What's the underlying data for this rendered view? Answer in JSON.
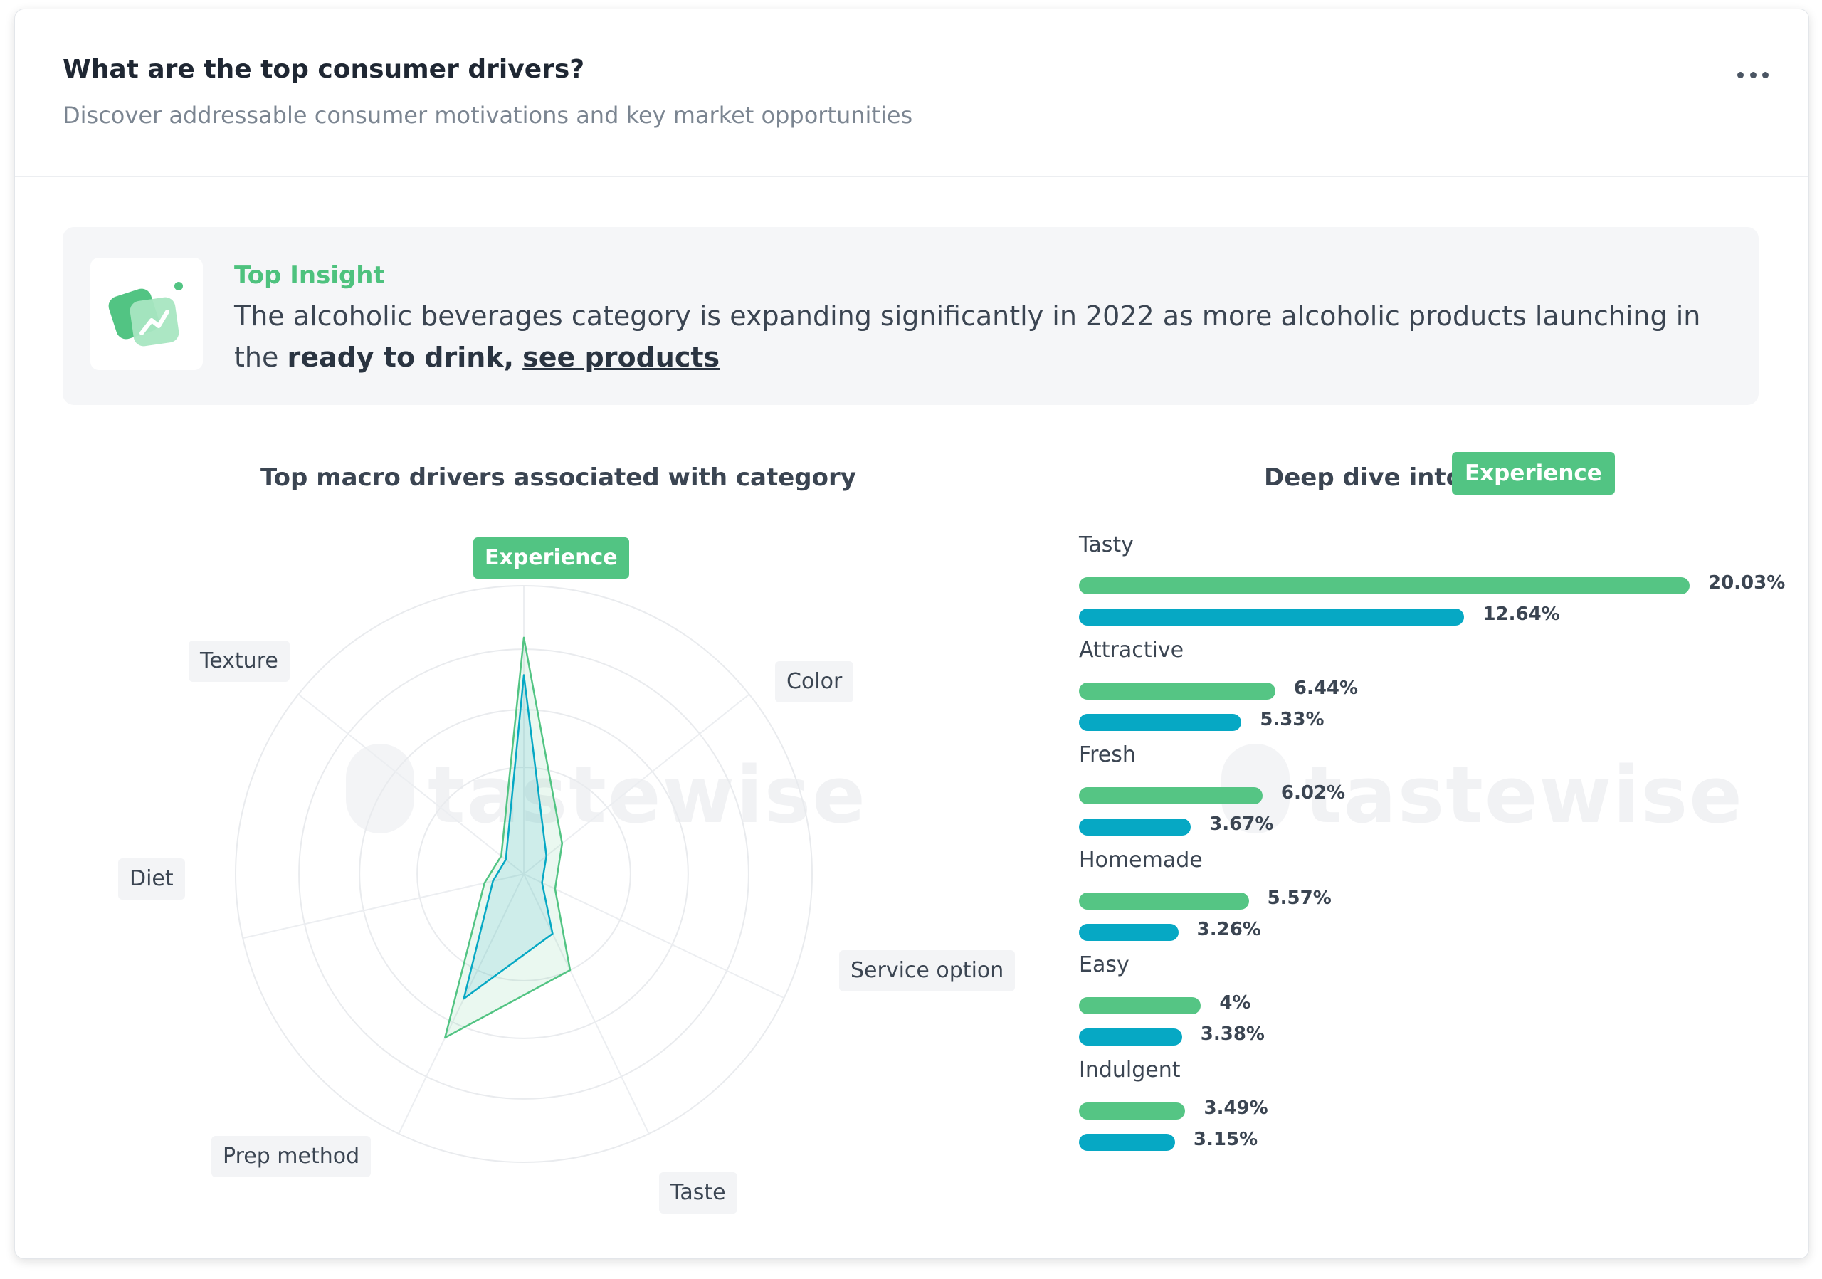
{
  "header": {
    "title": "What are the top consumer drivers?",
    "subtitle": "Discover addressable consumer motivations and key market opportunities"
  },
  "insight": {
    "label": "Top Insight",
    "text_before": "The alcoholic beverages category is expanding significantly in 2022 as more alcoholic products launching in the ",
    "text_bold": "ready to drink,",
    "link": "see products",
    "icon": "trend-chart-icon"
  },
  "radar": {
    "title": "Top macro drivers associated with category",
    "watermark": "tastewise"
  },
  "deep_dive": {
    "title": "Deep dive into",
    "badge": "Experience",
    "watermark": "tastewise"
  },
  "colors": {
    "green": "#52c483",
    "blue": "#06a8c4"
  },
  "chart_data": [
    {
      "type": "radar",
      "axes": [
        "Experience",
        "Color",
        "Service option",
        "Taste",
        "Prep method",
        "Diet",
        "Texture"
      ],
      "active_axis": "Experience",
      "rmax": 100,
      "series": [
        {
          "values": [
            82,
            17,
            12,
            37,
            63,
            14,
            10
          ]
        },
        {
          "values": [
            69,
            10,
            7,
            23,
            48,
            11,
            8
          ]
        }
      ]
    },
    {
      "type": "bar",
      "orientation": "horizontal",
      "categories": [
        "Tasty",
        "Attractive",
        "Fresh",
        "Homemade",
        "Easy",
        "Indulgent"
      ],
      "series": [
        {
          "values": [
            20.03,
            6.44,
            6.02,
            5.57,
            4,
            3.49
          ],
          "labels": [
            "20.03%",
            "6.44%",
            "6.02%",
            "5.57%",
            "4%",
            "3.49%"
          ]
        },
        {
          "values": [
            12.64,
            5.33,
            3.67,
            3.26,
            3.38,
            3.15
          ],
          "labels": [
            "12.64%",
            "5.33%",
            "3.67%",
            "3.26%",
            "3.38%",
            "3.15%"
          ]
        }
      ],
      "xlim": [
        0,
        20.03
      ]
    }
  ]
}
